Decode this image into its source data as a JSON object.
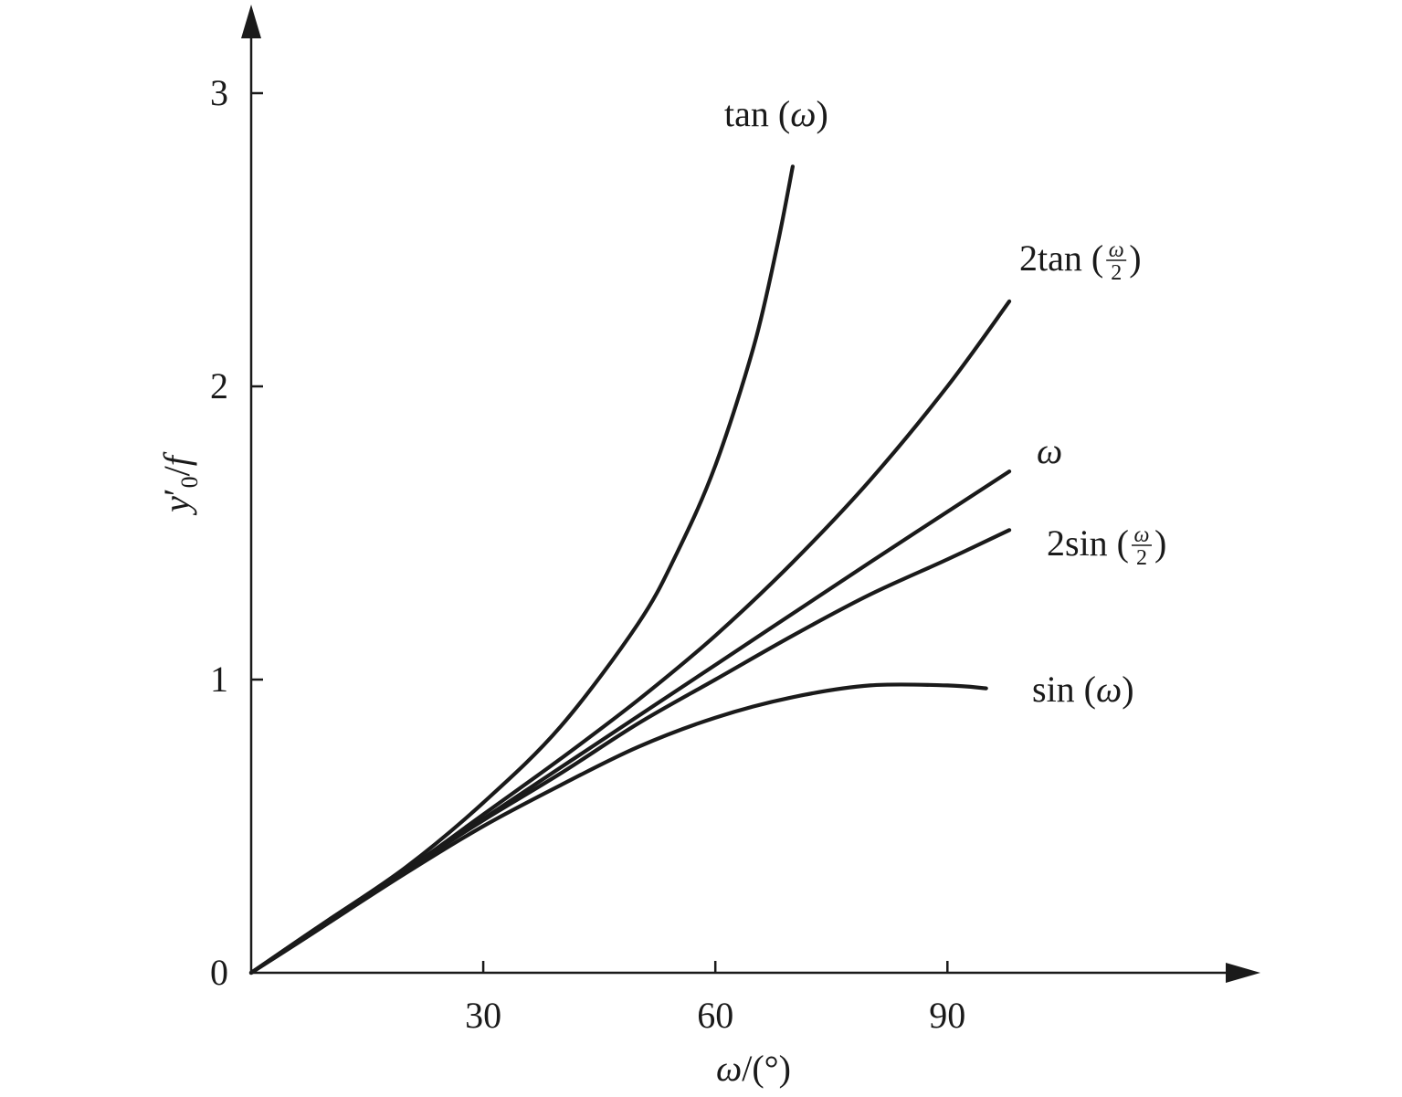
{
  "chart_data": {
    "type": "line",
    "xlabel": {
      "symbol": "ω",
      "rest": "/(°)"
    },
    "ylabel": {
      "base": "y",
      "prime": "′",
      "sub": "0",
      "rest": "/",
      "f": "f"
    },
    "xlim": [
      0,
      130
    ],
    "ylim": [
      0,
      3.2
    ],
    "xticks": [
      30,
      60,
      90
    ],
    "xtick_labels": [
      "30",
      "60",
      "90"
    ],
    "yticks": [
      0,
      1,
      2,
      3
    ],
    "ytick_labels": [
      "0",
      "1",
      "2",
      "3"
    ],
    "grid": false,
    "series": [
      {
        "name": "tan (ω)",
        "label_parts": {
          "pre": "tan (",
          "sym": "ω",
          "post": ")"
        },
        "x": [
          0,
          10,
          20,
          30,
          40,
          50,
          55,
          60,
          65,
          68,
          70
        ],
        "y": [
          0,
          0.18,
          0.36,
          0.58,
          0.84,
          1.19,
          1.43,
          1.73,
          2.14,
          2.48,
          2.75
        ]
      },
      {
        "name": "2tan (ω/2)",
        "label_parts": {
          "pre": "2tan (",
          "num": "ω",
          "den": "2",
          "post": ")"
        },
        "x": [
          0,
          10,
          20,
          30,
          40,
          50,
          60,
          70,
          80,
          90,
          98
        ],
        "y": [
          0,
          0.18,
          0.35,
          0.54,
          0.73,
          0.93,
          1.15,
          1.4,
          1.68,
          2.0,
          2.29
        ]
      },
      {
        "name": "ω",
        "label_parts": {
          "sym": "ω"
        },
        "x": [
          0,
          20,
          40,
          60,
          80,
          98
        ],
        "y": [
          0,
          0.35,
          0.7,
          1.05,
          1.4,
          1.71
        ]
      },
      {
        "name": "2sin (ω/2)",
        "label_parts": {
          "pre": "2sin (",
          "num": "ω",
          "den": "2",
          "post": ")"
        },
        "x": [
          0,
          10,
          20,
          30,
          40,
          50,
          60,
          70,
          80,
          90,
          98
        ],
        "y": [
          0,
          0.17,
          0.35,
          0.52,
          0.68,
          0.85,
          1.0,
          1.15,
          1.29,
          1.41,
          1.51
        ]
      },
      {
        "name": "sin (ω)",
        "label_parts": {
          "pre": "sin (",
          "sym": "ω",
          "post": ")"
        },
        "x": [
          0,
          10,
          20,
          30,
          40,
          50,
          60,
          70,
          80,
          90,
          95
        ],
        "y": [
          0,
          0.17,
          0.34,
          0.5,
          0.64,
          0.77,
          0.87,
          0.94,
          0.98,
          0.98,
          0.97
        ]
      }
    ]
  }
}
